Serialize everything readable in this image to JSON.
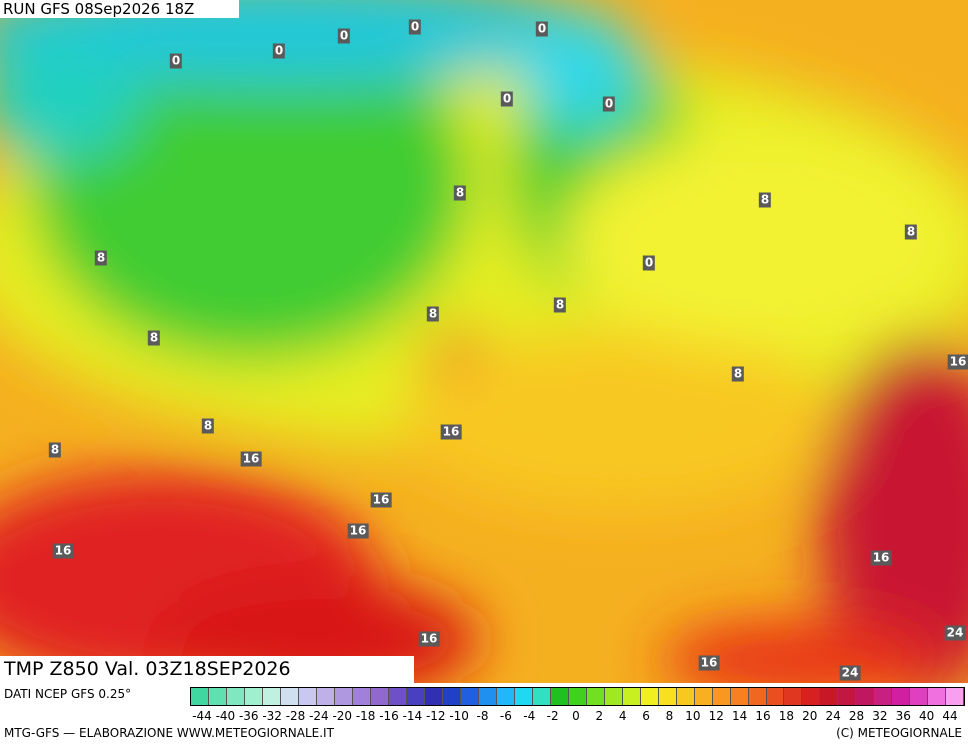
{
  "header": {
    "run": "RUN GFS 08Sep2026 18Z"
  },
  "map": {
    "title": "TMP Z850 Val. 03Z18SEP2026",
    "contour_labels": [
      0,
      0,
      0,
      0,
      0,
      0,
      0,
      0,
      8,
      8,
      8,
      8,
      8,
      8,
      8,
      8,
      8,
      8,
      16,
      16,
      16,
      16,
      16,
      16,
      16,
      16,
      16,
      24,
      24
    ]
  },
  "legend": {
    "source": "DATI NCEP GFS 0.25°",
    "scale_labels": [
      -44,
      -40,
      -36,
      -32,
      -28,
      -24,
      -20,
      -18,
      -16,
      -14,
      -12,
      -10,
      -8,
      -6,
      -4,
      -2,
      0,
      2,
      4,
      6,
      8,
      10,
      12,
      14,
      16,
      18,
      20,
      24,
      28,
      32,
      36,
      40,
      44
    ]
  },
  "footer": {
    "credit": "MTG-GFS — ELABORAZIONE WWW.METEOGIORNALE.IT",
    "copyright": "(C) METEOGIORNALE"
  }
}
